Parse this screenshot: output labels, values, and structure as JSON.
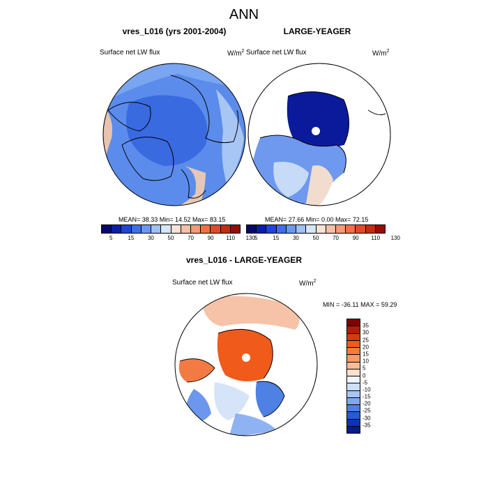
{
  "figure_title": "ANN",
  "panels": [
    {
      "title": "vres_L016 (yrs 2001-2004)",
      "variable": "Surface net LW flux",
      "units": "W/m",
      "units_sup": "2",
      "stats": "MEAN=  38.33  Min=  14.52  Max=  83.15",
      "colorbar_ticks": [
        "5",
        "15",
        "30",
        "50",
        "70",
        "90",
        "110",
        "130"
      ],
      "colorbar_colors": [
        "#08086b",
        "#0a1fa8",
        "#1f45d8",
        "#3f6ee8",
        "#6b97f0",
        "#9fc0f5",
        "#d6e6fa",
        "#fbe1d6",
        "#f9bfa6",
        "#f59a78",
        "#ee7148",
        "#e2492a",
        "#c72a12",
        "#950c05"
      ]
    },
    {
      "title": "LARGE-YEAGER",
      "variable": "Surface net LW flux",
      "units": "W/m",
      "units_sup": "2",
      "stats": "MEAN=  27.66  Min=   0.00  Max=  72.15",
      "colorbar_ticks": [
        "5",
        "15",
        "30",
        "50",
        "70",
        "90",
        "110",
        "130"
      ],
      "colorbar_colors": [
        "#08086b",
        "#0a1fa8",
        "#1f45d8",
        "#3f6ee8",
        "#6b97f0",
        "#9fc0f5",
        "#d6e6fa",
        "#fbe1d6",
        "#f9bfa6",
        "#f59a78",
        "#ee7148",
        "#e2492a",
        "#c72a12",
        "#950c05"
      ]
    }
  ],
  "diff_panel": {
    "title": "vres_L016 - LARGE-YEAGER",
    "variable": "Surface net LW flux",
    "units": "W/m",
    "units_sup": "2",
    "stats": "MIN = -36.11 MAX =  59.29",
    "colorbar_ticks": [
      "35",
      "30",
      "25",
      "20",
      "15",
      "10",
      "5",
      "0",
      "-5",
      "-10",
      "-15",
      "-20",
      "-25",
      "-30",
      "-35"
    ],
    "colorbar_colors": [
      "#800000",
      "#b01e05",
      "#d73a0d",
      "#f05a1a",
      "#f77a3f",
      "#f99a68",
      "#fbbc98",
      "#fde0cc",
      "#eef5fd",
      "#cde0fa",
      "#a6c6f5",
      "#7fa8ee",
      "#4f80e4",
      "#2a58d6",
      "#0f33b8",
      "#061c8a"
    ]
  }
}
